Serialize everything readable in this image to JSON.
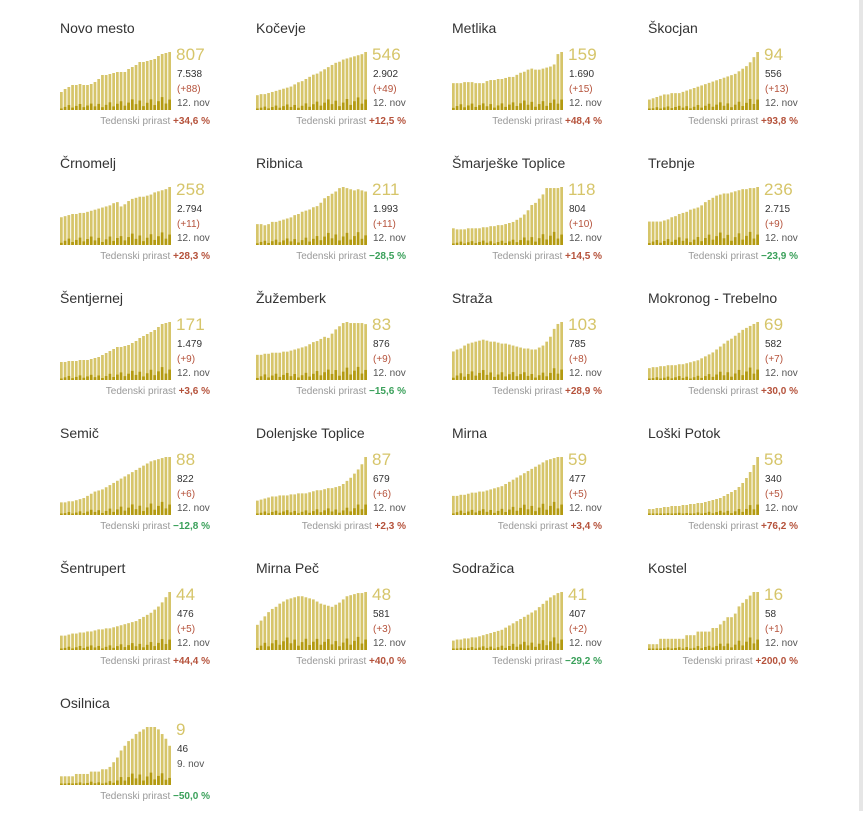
{
  "growth_label": "Tedenski prirast",
  "colors": {
    "bar_main": "#d6c56a",
    "bar_dark": "#b39a10",
    "number": "#d6c56a",
    "up": "#b5523b",
    "down": "#3aa05a"
  },
  "chart_data": [
    {
      "type": "bar",
      "name": "Novo mesto",
      "active": 807,
      "total": "7.538",
      "delta": "(+88)",
      "date": "12. nov",
      "growth": "+34,6 %",
      "dir": "up",
      "values": [
        14,
        17,
        19,
        21,
        21,
        22,
        21,
        21,
        22,
        24,
        27,
        31,
        31,
        32,
        33,
        34,
        34,
        34,
        37,
        39,
        41,
        44,
        44,
        45,
        46,
        47,
        50,
        52,
        53,
        54
      ]
    },
    {
      "type": "bar",
      "name": "Kočevje",
      "active": 546,
      "total": "2.902",
      "delta": "(+49)",
      "date": "12. nov",
      "growth": "+12,5 %",
      "dir": "up",
      "values": [
        10,
        11,
        11,
        12,
        13,
        14,
        15,
        16,
        17,
        18,
        20,
        22,
        23,
        25,
        27,
        29,
        30,
        32,
        34,
        36,
        38,
        40,
        41,
        43,
        44,
        45,
        46,
        47,
        48,
        50
      ]
    },
    {
      "type": "bar",
      "name": "Metlika",
      "active": 159,
      "total": "1.690",
      "delta": "(+15)",
      "date": "12. nov",
      "growth": "+48,4 %",
      "dir": "up",
      "values": [
        22,
        22,
        22,
        23,
        23,
        23,
        22,
        22,
        22,
        24,
        25,
        25,
        26,
        26,
        27,
        28,
        28,
        30,
        32,
        33,
        35,
        36,
        35,
        35,
        36,
        37,
        38,
        40,
        50,
        52
      ]
    },
    {
      "type": "bar",
      "name": "Škocjan",
      "active": 94,
      "total": "556",
      "delta": "(+13)",
      "date": "12. nov",
      "growth": "+93,8 %",
      "dir": "up",
      "values": [
        5,
        6,
        7,
        8,
        9,
        9,
        10,
        10,
        10,
        11,
        12,
        13,
        14,
        15,
        16,
        17,
        18,
        19,
        20,
        21,
        22,
        23,
        24,
        25,
        27,
        29,
        31,
        34,
        38,
        42
      ]
    },
    {
      "type": "bar",
      "name": "Črnomelj",
      "active": 258,
      "total": "2.794",
      "delta": "(+11)",
      "date": "12. nov",
      "growth": "+28,3 %",
      "dir": "up",
      "values": [
        22,
        23,
        24,
        25,
        25,
        26,
        26,
        27,
        28,
        29,
        30,
        31,
        32,
        33,
        35,
        36,
        32,
        34,
        37,
        39,
        40,
        41,
        41,
        42,
        43,
        45,
        46,
        47,
        48,
        50
      ]
    },
    {
      "type": "bar",
      "name": "Ribnica",
      "active": 211,
      "total": "1.993",
      "delta": "(+11)",
      "date": "12. nov",
      "growth": "−28,5 %",
      "dir": "down",
      "values": [
        15,
        15,
        14,
        15,
        17,
        17,
        18,
        19,
        20,
        21,
        23,
        24,
        26,
        27,
        28,
        30,
        31,
        34,
        38,
        40,
        42,
        44,
        47,
        48,
        47,
        46,
        45,
        46,
        45,
        44
      ]
    },
    {
      "type": "bar",
      "name": "Šmarješke Toplice",
      "active": 118,
      "total": "804",
      "delta": "(+10)",
      "date": "12. nov",
      "growth": "+14,5 %",
      "dir": "up",
      "values": [
        12,
        11,
        11,
        11,
        12,
        12,
        12,
        12,
        13,
        13,
        14,
        14,
        15,
        15,
        16,
        17,
        18,
        20,
        22,
        25,
        29,
        34,
        36,
        40,
        44,
        50,
        50,
        50,
        50,
        51
      ]
    },
    {
      "type": "bar",
      "name": "Trebnje",
      "active": 236,
      "total": "2.715",
      "delta": "(+9)",
      "date": "12. nov",
      "growth": "−23,9 %",
      "dir": "down",
      "values": [
        18,
        18,
        18,
        18,
        19,
        20,
        22,
        23,
        25,
        26,
        27,
        29,
        30,
        31,
        33,
        36,
        38,
        40,
        42,
        43,
        44,
        44,
        45,
        46,
        47,
        48,
        48,
        49,
        49,
        50
      ]
    },
    {
      "type": "bar",
      "name": "Šentjernej",
      "active": 171,
      "total": "1.479",
      "delta": "(+9)",
      "date": "12. nov",
      "growth": "+3,6 %",
      "dir": "up",
      "values": [
        14,
        14,
        15,
        15,
        15,
        16,
        16,
        16,
        17,
        18,
        19,
        21,
        23,
        25,
        27,
        29,
        29,
        30,
        31,
        33,
        35,
        38,
        40,
        42,
        44,
        46,
        49,
        52,
        53,
        54
      ]
    },
    {
      "type": "bar",
      "name": "Žužemberk",
      "active": 83,
      "total": "876",
      "delta": "(+9)",
      "date": "12. nov",
      "growth": "−15,6 %",
      "dir": "down",
      "values": [
        20,
        20,
        21,
        21,
        22,
        22,
        22,
        23,
        23,
        24,
        25,
        26,
        27,
        28,
        30,
        32,
        33,
        35,
        37,
        36,
        40,
        44,
        47,
        50,
        51,
        50,
        50,
        50,
        50,
        49
      ]
    },
    {
      "type": "bar",
      "name": "Straža",
      "active": 103,
      "total": "785",
      "delta": "(+8)",
      "date": "12. nov",
      "growth": "+28,9 %",
      "dir": "up",
      "values": [
        25,
        27,
        28,
        31,
        33,
        34,
        35,
        36,
        37,
        36,
        35,
        35,
        34,
        33,
        33,
        32,
        31,
        30,
        29,
        28,
        28,
        27,
        27,
        29,
        31,
        35,
        40,
        48,
        53,
        55
      ]
    },
    {
      "type": "bar",
      "name": "Mokronog - Trebelno",
      "active": 69,
      "total": "582",
      "delta": "(+7)",
      "date": "12. nov",
      "growth": "+30,0 %",
      "dir": "up",
      "values": [
        8,
        9,
        9,
        10,
        10,
        11,
        11,
        11,
        12,
        12,
        13,
        14,
        15,
        16,
        18,
        20,
        22,
        24,
        27,
        30,
        33,
        36,
        38,
        41,
        44,
        47,
        49,
        51,
        53,
        55
      ]
    },
    {
      "type": "bar",
      "name": "Semič",
      "active": 88,
      "total": "822",
      "delta": "(+6)",
      "date": "12. nov",
      "growth": "−12,8 %",
      "dir": "down",
      "values": [
        8,
        8,
        9,
        9,
        10,
        11,
        12,
        14,
        16,
        18,
        19,
        20,
        22,
        24,
        26,
        28,
        30,
        32,
        34,
        36,
        38,
        40,
        42,
        44,
        46,
        47,
        48,
        49,
        50,
        50
      ]
    },
    {
      "type": "bar",
      "name": "Dolenjske Toplice",
      "active": 87,
      "total": "679",
      "delta": "(+6)",
      "date": "12. nov",
      "growth": "+2,3 %",
      "dir": "up",
      "values": [
        10,
        11,
        12,
        13,
        14,
        14,
        15,
        15,
        15,
        16,
        16,
        17,
        17,
        17,
        18,
        19,
        20,
        20,
        21,
        22,
        22,
        23,
        24,
        26,
        29,
        32,
        36,
        40,
        45,
        52
      ]
    },
    {
      "type": "bar",
      "name": "Mirna",
      "active": 59,
      "total": "477",
      "delta": "(+5)",
      "date": "12. nov",
      "growth": "+3,4 %",
      "dir": "up",
      "values": [
        14,
        14,
        15,
        15,
        16,
        17,
        17,
        18,
        18,
        19,
        20,
        21,
        22,
        23,
        25,
        27,
        29,
        31,
        33,
        35,
        37,
        39,
        41,
        43,
        45,
        47,
        48,
        49,
        50,
        50
      ]
    },
    {
      "type": "bar",
      "name": "Loški Potok",
      "active": 58,
      "total": "340",
      "delta": "(+5)",
      "date": "12. nov",
      "growth": "+76,2 %",
      "dir": "up",
      "values": [
        2,
        2,
        3,
        3,
        4,
        4,
        5,
        5,
        5,
        6,
        6,
        7,
        7,
        8,
        8,
        9,
        10,
        11,
        12,
        13,
        15,
        17,
        19,
        21,
        24,
        28,
        33,
        39,
        46,
        54
      ]
    },
    {
      "type": "bar",
      "name": "Šentrupert",
      "active": 44,
      "total": "476",
      "delta": "(+5)",
      "date": "12. nov",
      "growth": "+44,4 %",
      "dir": "up",
      "values": [
        10,
        10,
        11,
        12,
        12,
        13,
        13,
        14,
        14,
        15,
        16,
        16,
        17,
        17,
        18,
        19,
        20,
        21,
        22,
        23,
        24,
        26,
        28,
        30,
        32,
        35,
        38,
        42,
        47,
        52
      ]
    },
    {
      "type": "bar",
      "name": "Mirna Peč",
      "active": 48,
      "total": "581",
      "delta": "(+3)",
      "date": "12. nov",
      "growth": "+40,0 %",
      "dir": "up",
      "values": [
        20,
        24,
        28,
        32,
        35,
        37,
        40,
        42,
        44,
        45,
        46,
        47,
        47,
        46,
        45,
        44,
        42,
        40,
        39,
        38,
        37,
        39,
        41,
        44,
        47,
        48,
        49,
        50,
        50,
        51
      ]
    },
    {
      "type": "bar",
      "name": "Sodražica",
      "active": 41,
      "total": "407",
      "delta": "(+2)",
      "date": "12. nov",
      "growth": "−29,2 %",
      "dir": "down",
      "values": [
        5,
        6,
        6,
        7,
        7,
        8,
        8,
        9,
        10,
        11,
        12,
        13,
        14,
        15,
        17,
        19,
        21,
        23,
        25,
        27,
        29,
        31,
        33,
        36,
        39,
        42,
        45,
        47,
        49,
        50
      ]
    },
    {
      "type": "bar",
      "name": "Kostel",
      "active": 16,
      "total": "58",
      "delta": "(+1)",
      "date": "12. nov",
      "growth": "+200,0 %",
      "dir": "up",
      "values": [
        1,
        1,
        1,
        4,
        4,
        4,
        4,
        4,
        4,
        4,
        6,
        6,
        6,
        8,
        8,
        8,
        8,
        10,
        10,
        12,
        14,
        16,
        16,
        18,
        22,
        24,
        26,
        28,
        30,
        30
      ]
    },
    {
      "type": "bar",
      "name": "Osilnica",
      "active": 9,
      "total": "46",
      "delta": "",
      "date": "9. nov",
      "growth": "−50,0 %",
      "dir": "down",
      "values": [
        4,
        4,
        4,
        4,
        6,
        6,
        6,
        6,
        8,
        8,
        8,
        10,
        10,
        12,
        16,
        20,
        26,
        30,
        34,
        36,
        40,
        42,
        44,
        46,
        46,
        46,
        44,
        40,
        36,
        30
      ]
    }
  ]
}
